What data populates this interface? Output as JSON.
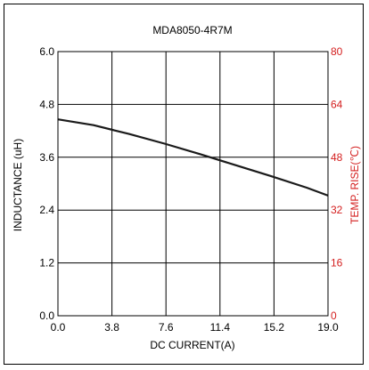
{
  "chart_data": {
    "type": "line",
    "title": "MDA8050-4R7M",
    "xlabel": "DC CURRENT(A)",
    "ylabel": "INDUCTANCE (uH)",
    "y2label": "TEMP. RISE(℃)",
    "xlim": [
      0,
      19
    ],
    "ylim": [
      0,
      6
    ],
    "y2lim": [
      0,
      80
    ],
    "xticks": [
      "0.0",
      "3.8",
      "7.6",
      "11.4",
      "15.2",
      "19.0"
    ],
    "yticks": [
      "0.0",
      "1.2",
      "2.4",
      "3.6",
      "4.8",
      "6.0"
    ],
    "y2ticks": [
      "0",
      "16",
      "32",
      "48",
      "64",
      "80"
    ],
    "grid": true,
    "colors": {
      "line": "#1a1a1a",
      "secondary_axis": "#d42020"
    },
    "series": [
      {
        "x": [
          0,
          2.5,
          5.0,
          7.5,
          10.0,
          12.5,
          15.0,
          17.5,
          19.0
        ],
        "values": [
          4.46,
          4.33,
          4.13,
          3.91,
          3.67,
          3.42,
          3.17,
          2.91,
          2.73
        ]
      }
    ]
  }
}
